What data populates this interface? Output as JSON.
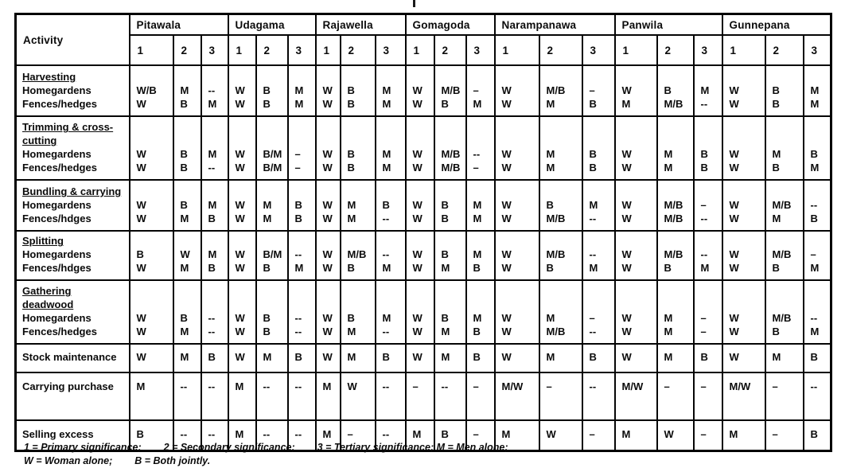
{
  "header": {
    "activity_label": "Activity",
    "column_labels": [
      "1",
      "2",
      "3"
    ],
    "villages": [
      "Pitawala",
      "Udagama",
      "Rajawella",
      "Gomagoda",
      "Narampanawa",
      "Panwila",
      "Gunnepana"
    ]
  },
  "legend": {
    "M": "Men alone",
    "W": "Woman alone",
    "B": "Both jointly",
    "1": "Primary significance",
    "2": "Secondary significance",
    "3": "Tertiary significance"
  },
  "rows": [
    {
      "underlined_lines": [
        "Harvesting"
      ],
      "plain_lines": [
        "Homegardens",
        "Fences/hedges"
      ],
      "cells": [
        [
          "W/B",
          "W"
        ],
        [
          "M",
          "B"
        ],
        [
          "--",
          "M"
        ],
        [
          "W",
          "W"
        ],
        [
          "B",
          "B"
        ],
        [
          "M",
          "M"
        ],
        [
          "W",
          "W"
        ],
        [
          "B",
          "B"
        ],
        [
          "M",
          "M"
        ],
        [
          "W",
          "W"
        ],
        [
          "M/B",
          "B"
        ],
        [
          "–",
          "M"
        ],
        [
          "W",
          "W"
        ],
        [
          "M/B",
          "M"
        ],
        [
          "–",
          "B"
        ],
        [
          "W",
          "M"
        ],
        [
          "B",
          "M/B"
        ],
        [
          "M",
          "--"
        ],
        [
          "W",
          "W"
        ],
        [
          "B",
          "B"
        ],
        [
          "M",
          "M"
        ]
      ]
    },
    {
      "underlined_lines": [
        "Trimming & cross-",
        "cutting"
      ],
      "plain_lines": [
        "Homegardens",
        "Fences/hedges"
      ],
      "cells": [
        [
          "W",
          "W"
        ],
        [
          "B",
          "B"
        ],
        [
          "M",
          "--"
        ],
        [
          "W",
          "W"
        ],
        [
          "B/M",
          "B/M"
        ],
        [
          "–",
          "–"
        ],
        [
          "W",
          "W"
        ],
        [
          "B",
          "B"
        ],
        [
          "M",
          "M"
        ],
        [
          "W",
          "W"
        ],
        [
          "M/B",
          "M/B"
        ],
        [
          "--",
          "–"
        ],
        [
          "W",
          "W"
        ],
        [
          "M",
          "M"
        ],
        [
          "B",
          "B"
        ],
        [
          "W",
          "W"
        ],
        [
          "M",
          "M"
        ],
        [
          "B",
          "B"
        ],
        [
          "W",
          "W"
        ],
        [
          "M",
          "B"
        ],
        [
          "B",
          "M"
        ]
      ]
    },
    {
      "underlined_lines": [
        "Bundling & carrying"
      ],
      "plain_lines": [
        "Homegardens",
        "Fences/hdges"
      ],
      "cells": [
        [
          "W",
          "W"
        ],
        [
          "B",
          "M"
        ],
        [
          "M",
          "B"
        ],
        [
          "W",
          "W"
        ],
        [
          "M",
          "M"
        ],
        [
          "B",
          "B"
        ],
        [
          "W",
          "W"
        ],
        [
          "M",
          "M"
        ],
        [
          "B",
          "--"
        ],
        [
          "W",
          "W"
        ],
        [
          "B",
          "B"
        ],
        [
          "M",
          "M"
        ],
        [
          "W",
          "W"
        ],
        [
          "B",
          "M/B"
        ],
        [
          "M",
          "--"
        ],
        [
          "W",
          "W"
        ],
        [
          "M/B",
          "M/B"
        ],
        [
          "–",
          "--"
        ],
        [
          "W",
          "W"
        ],
        [
          "M/B",
          "M"
        ],
        [
          "--",
          "B"
        ]
      ]
    },
    {
      "underlined_lines": [
        "Splitting"
      ],
      "plain_lines": [
        "Homegardens",
        "Fences/hdges"
      ],
      "cells": [
        [
          "B",
          "W"
        ],
        [
          "W",
          "M"
        ],
        [
          "M",
          "B"
        ],
        [
          "W",
          "W"
        ],
        [
          "B/M",
          "B"
        ],
        [
          "--",
          "M"
        ],
        [
          "W",
          "W"
        ],
        [
          "M/B",
          "B"
        ],
        [
          "--",
          "M"
        ],
        [
          "W",
          "W"
        ],
        [
          "B",
          "M"
        ],
        [
          "M",
          "B"
        ],
        [
          "W",
          "W"
        ],
        [
          "M/B",
          "B"
        ],
        [
          "--",
          "M"
        ],
        [
          "W",
          "W"
        ],
        [
          "M/B",
          "B"
        ],
        [
          "--",
          "M"
        ],
        [
          "W",
          "W"
        ],
        [
          "M/B",
          "B"
        ],
        [
          "–",
          "M"
        ]
      ]
    },
    {
      "underlined_lines": [
        "Gathering",
        "deadwood"
      ],
      "plain_lines": [
        "Homegardens",
        "Fences/hedges"
      ],
      "cells": [
        [
          "W",
          "W"
        ],
        [
          "B",
          "M"
        ],
        [
          "--",
          "--"
        ],
        [
          "W",
          "W"
        ],
        [
          "B",
          "B"
        ],
        [
          "--",
          "--"
        ],
        [
          "W",
          "W"
        ],
        [
          "B",
          "M"
        ],
        [
          "M",
          "--"
        ],
        [
          "W",
          "W"
        ],
        [
          "B",
          "M"
        ],
        [
          "M",
          "B"
        ],
        [
          "W",
          "W"
        ],
        [
          "M",
          "M/B"
        ],
        [
          "–",
          "--"
        ],
        [
          "W",
          "W"
        ],
        [
          "M",
          "M"
        ],
        [
          "–",
          "–"
        ],
        [
          "W",
          "W"
        ],
        [
          "M/B",
          "B"
        ],
        [
          "--",
          "M"
        ]
      ]
    },
    {
      "underlined_lines": [],
      "plain_lines": [
        "Stock maintenance"
      ],
      "cells": [
        [
          "W"
        ],
        [
          "M"
        ],
        [
          "B"
        ],
        [
          "W"
        ],
        [
          "M"
        ],
        [
          "B"
        ],
        [
          "W"
        ],
        [
          "M"
        ],
        [
          "B"
        ],
        [
          "W"
        ],
        [
          "M"
        ],
        [
          "B"
        ],
        [
          "W"
        ],
        [
          "M"
        ],
        [
          "B"
        ],
        [
          "W"
        ],
        [
          "M"
        ],
        [
          "B"
        ],
        [
          "W"
        ],
        [
          "M"
        ],
        [
          "B"
        ]
      ]
    },
    {
      "underlined_lines": [],
      "plain_lines": [
        "Carrying purchase"
      ],
      "cells": [
        [
          "M"
        ],
        [
          "--"
        ],
        [
          "--"
        ],
        [
          "M"
        ],
        [
          "--"
        ],
        [
          "--"
        ],
        [
          "M"
        ],
        [
          "W"
        ],
        [
          "--"
        ],
        [
          "–"
        ],
        [
          "--"
        ],
        [
          "–"
        ],
        [
          "M/W"
        ],
        [
          "–"
        ],
        [
          "--"
        ],
        [
          "M/W"
        ],
        [
          "–"
        ],
        [
          "–"
        ],
        [
          "M/W"
        ],
        [
          "–"
        ],
        [
          "--"
        ]
      ]
    },
    {
      "underlined_lines": [],
      "plain_lines": [
        "Selling excess"
      ],
      "cells": [
        [
          "B"
        ],
        [
          "--"
        ],
        [
          "--"
        ],
        [
          "M"
        ],
        [
          "--"
        ],
        [
          "--"
        ],
        [
          "M"
        ],
        [
          "–"
        ],
        [
          "--"
        ],
        [
          "M"
        ],
        [
          "B"
        ],
        [
          "–"
        ],
        [
          "M"
        ],
        [
          "W"
        ],
        [
          "–"
        ],
        [
          "M"
        ],
        [
          "W"
        ],
        [
          "–"
        ],
        [
          "M"
        ],
        [
          "–"
        ],
        [
          "B"
        ]
      ]
    }
  ],
  "footnotes": {
    "lines": [
      [
        "1 = Primary significance;",
        "2 = Secondary significance;",
        "3 = Tertiary significance; M = Men alone;"
      ],
      [
        "W = Woman alone;",
        "B = Both jointly."
      ]
    ]
  }
}
